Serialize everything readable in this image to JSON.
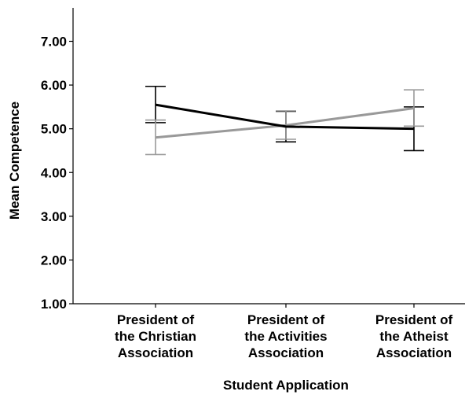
{
  "chart_data": {
    "type": "line",
    "title": "",
    "xlabel": "Student Application",
    "ylabel": "Mean Competence",
    "ylim": [
      1.0,
      7.6
    ],
    "yticks": [
      "1.00",
      "2.00",
      "3.00",
      "4.00",
      "5.00",
      "6.00",
      "7.00"
    ],
    "categories": [
      [
        "President of",
        "the Christian",
        "Association"
      ],
      [
        "President of",
        "the Activities",
        "Association"
      ],
      [
        "President of",
        "the Atheist",
        "Association"
      ]
    ],
    "grid": false,
    "legend": "none",
    "series": [
      {
        "color": "#000000",
        "values": [
          5.55,
          5.05,
          5.0
        ],
        "error_low": [
          5.14,
          4.7,
          4.5
        ],
        "error_high": [
          5.97,
          5.4,
          5.5
        ]
      },
      {
        "color": "#999999",
        "values": [
          4.8,
          5.08,
          5.47
        ],
        "error_low": [
          4.41,
          4.76,
          5.06
        ],
        "error_high": [
          5.2,
          5.41,
          5.89
        ]
      }
    ]
  }
}
